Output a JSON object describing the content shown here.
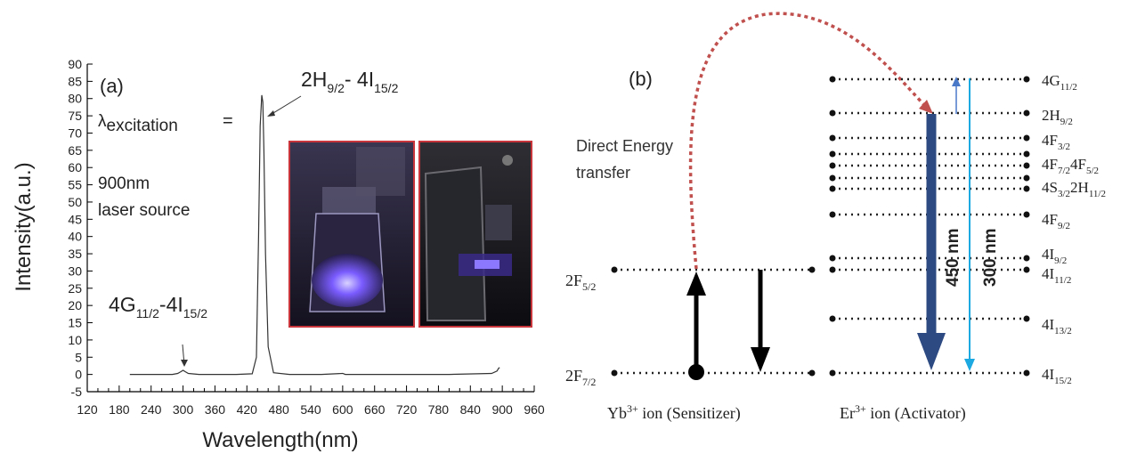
{
  "panel_a": {
    "label": "(a)",
    "excitation_symbol": "λ",
    "excitation_sub": "excitation",
    "excitation_eq": "=",
    "source_line1": "900nm",
    "source_line2": "laser source",
    "peak_main": {
      "base": "2H",
      "sub1": "9/2",
      "mid": "- 4I",
      "sub2": "15/2"
    },
    "peak_minor": {
      "base": "4G",
      "sub1": "11/2",
      "mid": "-4I",
      "sub2": "15/2"
    },
    "photos": [
      "photo-vial-glowing",
      "photo-sample-holder"
    ]
  },
  "chart_data": {
    "type": "line",
    "xlabel": "Wavelength(nm)",
    "ylabel": "Intensity(a.u.)",
    "xlim": [
      120,
      960
    ],
    "ylim": [
      -5,
      90
    ],
    "xticks": [
      120,
      180,
      240,
      300,
      360,
      420,
      480,
      540,
      600,
      660,
      720,
      780,
      840,
      900,
      960
    ],
    "xtick_labels": [
      "120",
      "240",
      "360",
      "480",
      "600",
      "720",
      "840",
      "960"
    ],
    "xtick_label_values": [
      120,
      240,
      360,
      480,
      600,
      720,
      840,
      960
    ],
    "yticks": [
      -5,
      0,
      5,
      10,
      15,
      20,
      25,
      30,
      35,
      40,
      45,
      50,
      55,
      60,
      65,
      70,
      75,
      80,
      85,
      90
    ],
    "grid": false,
    "series": [
      {
        "x": [
          200,
          280,
          290,
          296,
          300,
          304,
          310,
          330,
          400,
          430,
          438,
          442,
          445,
          448,
          450,
          452,
          455,
          460,
          470,
          500,
          560,
          600,
          605,
          640,
          700,
          800,
          880,
          890,
          893,
          895
        ],
        "y": [
          0,
          0,
          0.3,
          0.8,
          1.2,
          0.8,
          0.3,
          0,
          0,
          0.2,
          5,
          40,
          72,
          81,
          79,
          65,
          35,
          8,
          0.5,
          0,
          0,
          0.3,
          0,
          0,
          0,
          0,
          0.3,
          1,
          1.8,
          2
        ]
      }
    ]
  },
  "panel_b": {
    "label": "(b)",
    "transfer_line1": "Direct Energy",
    "transfer_line2": "transfer",
    "yb_levels": [
      {
        "base": "2F",
        "sub": "5/2"
      },
      {
        "base": "2F",
        "sub": "7/2"
      }
    ],
    "er_levels": [
      {
        "parts": [
          {
            "t": "4G",
            "s": "11/2"
          }
        ]
      },
      {
        "parts": [
          {
            "t": "2H",
            "s": "9/2"
          }
        ]
      },
      {
        "parts": [
          {
            "t": "4F",
            "s": "3/2"
          }
        ]
      },
      {
        "parts": [
          {
            "t": "4F",
            "s": "7/2"
          },
          {
            "t": "4F",
            "s": "5/2"
          }
        ]
      },
      {
        "parts": [
          {
            "t": "4S",
            "s": "3/2"
          },
          {
            "t": "2H",
            "s": "11/2"
          }
        ]
      },
      {
        "parts": [
          {
            "t": "4F",
            "s": "9/2"
          }
        ]
      },
      {
        "parts": [
          {
            "t": "4I",
            "s": "9/2"
          }
        ]
      },
      {
        "parts": [
          {
            "t": "4I",
            "s": "11/2"
          }
        ]
      },
      {
        "parts": [
          {
            "t": "4I",
            "s": "13/2"
          }
        ]
      },
      {
        "parts": [
          {
            "t": "4I",
            "s": "15/2"
          }
        ]
      }
    ],
    "emission_450": "450 nm",
    "emission_300": "300 nm",
    "yb_caption": {
      "base": "Yb",
      "sup": "3+",
      "rest": " ion (Sensitizer)"
    },
    "er_caption": {
      "base": "Er",
      "sup": "3+",
      "rest": " ion (Activator)"
    },
    "colors": {
      "transfer": "#c0504d",
      "arrow_450": "#2e4a82",
      "arrow_300": "#1ca8e0",
      "arrow_small": "#4a78c8"
    }
  }
}
